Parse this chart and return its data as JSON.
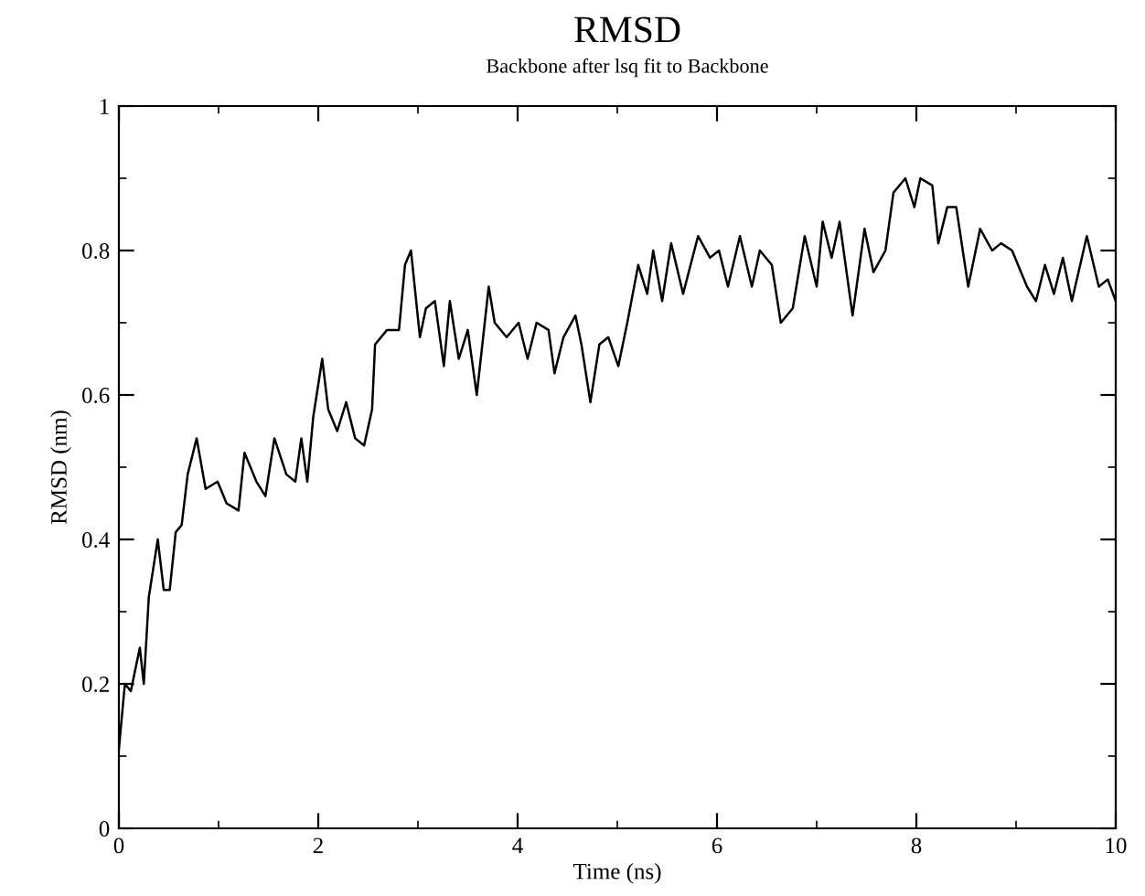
{
  "chart_data": {
    "type": "line",
    "title": "RMSD",
    "subtitle": "Backbone after lsq fit to Backbone",
    "xlabel": "Time (ns)",
    "ylabel": "RMSD (nm)",
    "xlim": [
      0,
      10
    ],
    "xticks": [
      0,
      2,
      4,
      6,
      8,
      10
    ],
    "ylim": [
      0,
      1
    ],
    "yticks": [
      0,
      0.2,
      0.4,
      0.6,
      0.8,
      1
    ],
    "grid": false,
    "marker": "none",
    "line_style": "solid",
    "series": [
      {
        "color": "#000000",
        "x": [
          0,
          0.06,
          0.12,
          0.15,
          0.21,
          0.25,
          0.3,
          0.39,
          0.45,
          0.51,
          0.57,
          0.63,
          0.69,
          0.78,
          0.87,
          0.99,
          1.08,
          1.2,
          1.26,
          1.38,
          1.47,
          1.56,
          1.68,
          1.77,
          1.83,
          1.89,
          1.95,
          2.04,
          2.1,
          2.19,
          2.28,
          2.37,
          2.46,
          2.54,
          2.57,
          2.69,
          2.81,
          2.87,
          2.93,
          3.02,
          3.08,
          3.17,
          3.26,
          3.32,
          3.41,
          3.5,
          3.59,
          3.71,
          3.77,
          3.89,
          4.01,
          4.1,
          4.19,
          4.31,
          4.37,
          4.46,
          4.58,
          4.64,
          4.73,
          4.82,
          4.91,
          5.01,
          5.1,
          5.21,
          5.3,
          5.36,
          5.45,
          5.54,
          5.66,
          5.81,
          5.93,
          6.02,
          6.11,
          6.23,
          6.35,
          6.43,
          6.55,
          6.64,
          6.76,
          6.88,
          7.0,
          7.06,
          7.15,
          7.23,
          7.36,
          7.48,
          7.57,
          7.69,
          7.77,
          7.89,
          7.98,
          8.04,
          8.16,
          8.22,
          8.31,
          8.4,
          8.52,
          8.64,
          8.76,
          8.85,
          8.96,
          9.11,
          9.2,
          9.29,
          9.38,
          9.47,
          9.56,
          9.71,
          9.83,
          9.92,
          10.0
        ],
        "values": [
          0.11,
          0.2,
          0.19,
          0.21,
          0.25,
          0.2,
          0.32,
          0.4,
          0.33,
          0.33,
          0.41,
          0.42,
          0.49,
          0.54,
          0.47,
          0.48,
          0.45,
          0.44,
          0.52,
          0.48,
          0.46,
          0.54,
          0.49,
          0.48,
          0.54,
          0.48,
          0.57,
          0.65,
          0.58,
          0.55,
          0.59,
          0.54,
          0.53,
          0.58,
          0.67,
          0.69,
          0.69,
          0.78,
          0.8,
          0.68,
          0.72,
          0.73,
          0.64,
          0.73,
          0.65,
          0.69,
          0.6,
          0.75,
          0.7,
          0.68,
          0.7,
          0.65,
          0.7,
          0.69,
          0.63,
          0.68,
          0.71,
          0.67,
          0.59,
          0.67,
          0.68,
          0.64,
          0.7,
          0.78,
          0.74,
          0.8,
          0.73,
          0.81,
          0.74,
          0.82,
          0.79,
          0.8,
          0.75,
          0.82,
          0.75,
          0.8,
          0.78,
          0.7,
          0.72,
          0.82,
          0.75,
          0.84,
          0.79,
          0.84,
          0.71,
          0.83,
          0.77,
          0.8,
          0.88,
          0.9,
          0.86,
          0.9,
          0.89,
          0.81,
          0.86,
          0.86,
          0.75,
          0.83,
          0.8,
          0.81,
          0.8,
          0.75,
          0.73,
          0.78,
          0.74,
          0.79,
          0.73,
          0.82,
          0.75,
          0.76,
          0.73
        ]
      }
    ]
  }
}
